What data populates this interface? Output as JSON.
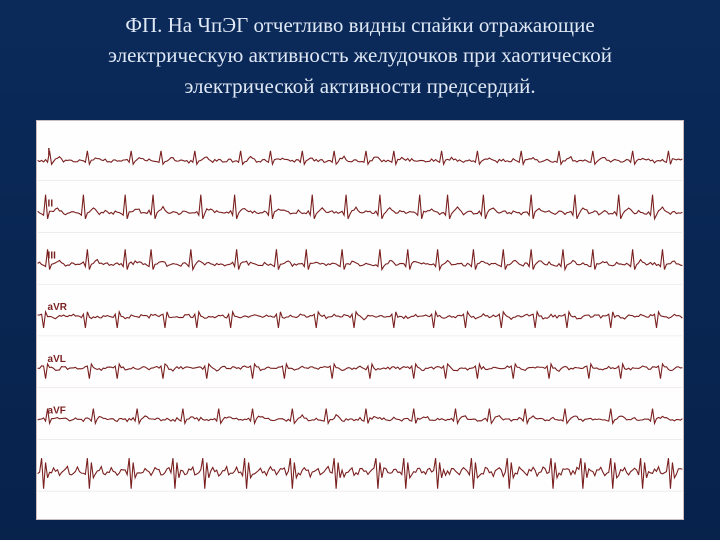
{
  "title_lines": [
    "ФП. На ЧпЭГ отчетливо видны спайки отражающие",
    "электрическую активность желудочков при хаотической",
    "электрической активности предсердий."
  ],
  "ecg": {
    "background": "#fefefe",
    "trace_color": "#7a1f1f",
    "grid_color": "#e5dcdc",
    "width_units": 648,
    "height_units": 400,
    "n_leads": 7,
    "lead_spacing": 52,
    "first_baseline": 40,
    "beats": 18,
    "beat_interval": 36,
    "leads": [
      {
        "label": "I",
        "amp": 10,
        "polarity": 1,
        "baseline_jitter": 2,
        "t_wave": 3,
        "fib_amp": 2.5,
        "spike": false
      },
      {
        "label": "II",
        "amp": 18,
        "polarity": 1,
        "baseline_jitter": 2,
        "t_wave": 4,
        "fib_amp": 3,
        "spike": false
      },
      {
        "label": "III",
        "amp": 15,
        "polarity": 1,
        "baseline_jitter": 2,
        "t_wave": 3,
        "fib_amp": 3,
        "spike": false
      },
      {
        "label": "aVR",
        "amp": 12,
        "polarity": -1,
        "baseline_jitter": 2,
        "t_wave": -2,
        "fib_amp": 2.5,
        "spike": false
      },
      {
        "label": "aVL",
        "amp": 11,
        "polarity": -1,
        "baseline_jitter": 2,
        "t_wave": -2,
        "fib_amp": 2.5,
        "spike": false
      },
      {
        "label": "aVF",
        "amp": 11,
        "polarity": 1,
        "baseline_jitter": 2,
        "t_wave": 3,
        "fib_amp": 2.5,
        "spike": false
      },
      {
        "label": "",
        "amp": 22,
        "polarity": 1,
        "baseline_jitter": 3,
        "t_wave": 0,
        "fib_amp": 8,
        "spike": true
      }
    ]
  },
  "colors": {
    "page_bg_top": "#0b2a5a",
    "page_bg_bottom": "#07224b",
    "title_text": "#dfe8f5"
  }
}
